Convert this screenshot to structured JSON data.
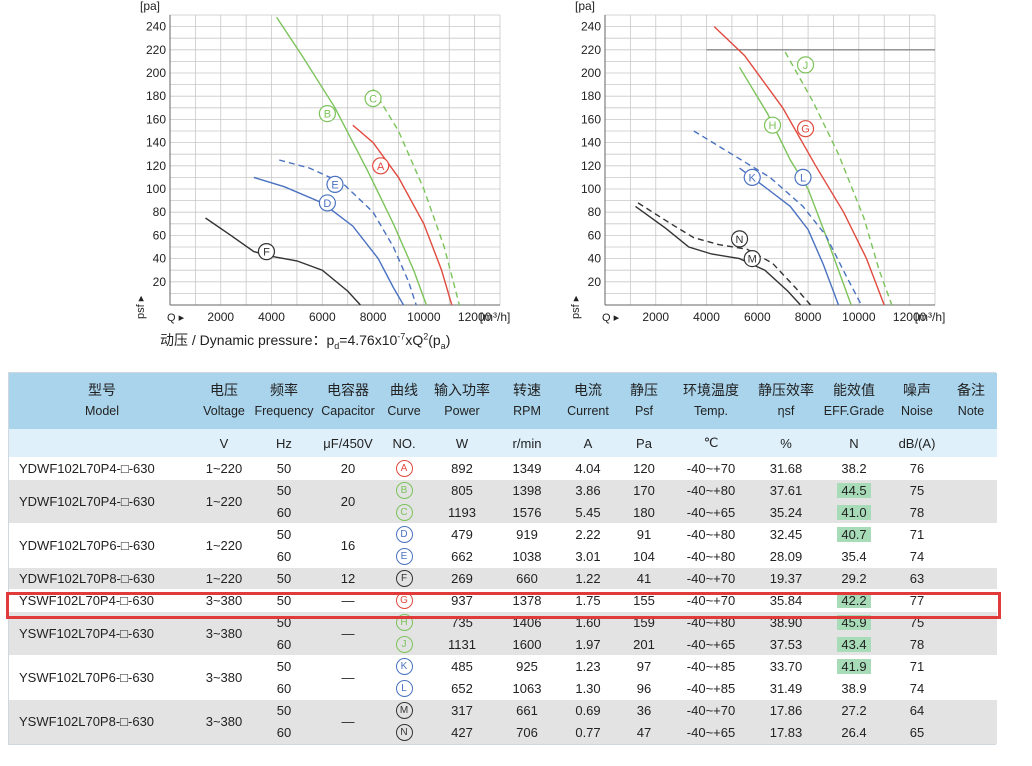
{
  "charts": {
    "y_unit": "[pa]",
    "x_unit": "[m³/h]",
    "y_axis_symbol": "p",
    "y_axis_sub": "sf",
    "x_axis_symbol": "Q",
    "y_ticks": [
      "20",
      "40",
      "60",
      "80",
      "100",
      "120",
      "140",
      "160",
      "180",
      "200",
      "220",
      "240"
    ],
    "x_ticks": [
      "2000",
      "4000",
      "6000",
      "8000",
      "10000",
      "12000"
    ]
  },
  "chart_data": [
    {
      "type": "line",
      "xlim": [
        0,
        13000
      ],
      "ylim": [
        0,
        250
      ],
      "series": [
        {
          "name": "A",
          "color": "#e04a3f",
          "dash": false,
          "x": [
            7200,
            8000,
            9000,
            10000,
            10700,
            11100
          ],
          "y": [
            155,
            140,
            110,
            70,
            30,
            0
          ]
        },
        {
          "name": "B",
          "color": "#7cc35a",
          "dash": false,
          "x": [
            4200,
            5200,
            6500,
            7800,
            8800,
            9600,
            10100
          ],
          "y": [
            248,
            215,
            170,
            115,
            70,
            30,
            0
          ]
        },
        {
          "name": "C",
          "color": "#7cc35a",
          "dash": true,
          "x": [
            8000,
            9000,
            10000,
            10800,
            11400
          ],
          "y": [
            186,
            150,
            100,
            50,
            0
          ]
        },
        {
          "name": "D",
          "color": "#4a72c0",
          "dash": false,
          "x": [
            3300,
            4500,
            6000,
            7200,
            8200,
            8800,
            9200
          ],
          "y": [
            110,
            102,
            88,
            68,
            40,
            15,
            0
          ]
        },
        {
          "name": "E",
          "color": "#4a72c0",
          "dash": true,
          "x": [
            4300,
            5500,
            6800,
            8000,
            8800,
            9400,
            9700
          ],
          "y": [
            125,
            118,
            105,
            80,
            50,
            20,
            0
          ]
        },
        {
          "name": "F",
          "color": "#333333",
          "dash": false,
          "x": [
            1400,
            2400,
            3300,
            4000,
            5000,
            6000,
            7000,
            7500
          ],
          "y": [
            75,
            60,
            46,
            42,
            38,
            30,
            12,
            0
          ]
        }
      ],
      "labels": [
        {
          "text": "A",
          "x": 8300,
          "y": 120
        },
        {
          "text": "B",
          "x": 6200,
          "y": 165
        },
        {
          "text": "C",
          "x": 8000,
          "y": 178
        },
        {
          "text": "D",
          "x": 6200,
          "y": 88
        },
        {
          "text": "E",
          "x": 6500,
          "y": 104
        },
        {
          "text": "F",
          "x": 3800,
          "y": 46
        }
      ]
    },
    {
      "type": "line",
      "xlim": [
        0,
        13000
      ],
      "ylim": [
        0,
        250
      ],
      "reference_line_y": 220,
      "series": [
        {
          "name": "G",
          "color": "#e04a3f",
          "dash": false,
          "x": [
            4300,
            5500,
            7000,
            8300,
            9400,
            10300,
            11000
          ],
          "y": [
            240,
            215,
            170,
            120,
            80,
            40,
            0
          ]
        },
        {
          "name": "H",
          "color": "#7cc35a",
          "dash": false,
          "x": [
            5300,
            6400,
            7300,
            8000,
            8700,
            9200,
            9700
          ],
          "y": [
            205,
            165,
            125,
            100,
            60,
            30,
            0
          ]
        },
        {
          "name": "J",
          "color": "#7cc35a",
          "dash": true,
          "x": [
            7100,
            8200,
            9200,
            10200,
            10800,
            11300
          ],
          "y": [
            218,
            175,
            130,
            75,
            30,
            0
          ]
        },
        {
          "name": "K",
          "color": "#4a72c0",
          "dash": false,
          "x": [
            5300,
            6400,
            7300,
            8000,
            8600,
            9200
          ],
          "y": [
            118,
            100,
            85,
            65,
            35,
            0
          ]
        },
        {
          "name": "L",
          "color": "#4a72c0",
          "dash": true,
          "x": [
            3500,
            5000,
            6500,
            7800,
            8700,
            9500,
            10100
          ],
          "y": [
            150,
            130,
            110,
            85,
            60,
            25,
            0
          ]
        },
        {
          "name": "M",
          "color": "#333333",
          "dash": false,
          "x": [
            1200,
            2400,
            3300,
            4200,
            5300,
            6300,
            7200,
            7700
          ],
          "y": [
            85,
            66,
            50,
            44,
            40,
            30,
            12,
            0
          ]
        },
        {
          "name": "N",
          "color": "#333333",
          "dash": true,
          "x": [
            1300,
            2600,
            3500,
            4500,
            5600,
            6600,
            7500,
            8100
          ],
          "y": [
            88,
            70,
            58,
            52,
            48,
            36,
            15,
            0
          ]
        }
      ],
      "labels": [
        {
          "text": "G",
          "x": 7900,
          "y": 152
        },
        {
          "text": "H",
          "x": 6600,
          "y": 155
        },
        {
          "text": "J",
          "x": 7900,
          "y": 207
        },
        {
          "text": "K",
          "x": 5800,
          "y": 110
        },
        {
          "text": "L",
          "x": 7800,
          "y": 110
        },
        {
          "text": "M",
          "x": 5800,
          "y": 40
        },
        {
          "text": "N",
          "x": 5300,
          "y": 57
        }
      ]
    }
  ],
  "formula": {
    "prefix": "动压 / Dynamic pressure：p",
    "sub1": "d",
    "middle": "=4.76x10",
    "sup1": "-7",
    "after": "xQ",
    "sup2": "2",
    "paren_open": "(p",
    "sub2": "a",
    "paren_close": ")"
  },
  "table": {
    "headers_cn": [
      "型号",
      "电压",
      "频率",
      "电容器",
      "曲线",
      "输入功率",
      "转速",
      "电流",
      "静压",
      "环境温度",
      "静压效率",
      "能效值",
      "噪声",
      "备注"
    ],
    "headers_en": [
      "Model",
      "Voltage",
      "Frequency",
      "Capacitor",
      "Curve",
      "Power",
      "RPM",
      "Current",
      "Psf",
      "Temp.",
      "ηsf",
      "EFF.Grade",
      "Noise",
      "Note"
    ],
    "units": [
      "",
      "V",
      "Hz",
      "μF/450V",
      "NO.",
      "W",
      "r/min",
      "A",
      "Pa",
      "℃",
      "%",
      "N",
      "dB/(A)",
      ""
    ],
    "groups": [
      {
        "model": "YDWF102L70P4-□-630",
        "voltage": "1~220",
        "capacitor": "20",
        "shade": "w",
        "rows": [
          {
            "hz": "50",
            "curve": "A",
            "color": "#e04a3f",
            "power": "892",
            "rpm": "1349",
            "current": "4.04",
            "psf": "120",
            "temp": "-40~+70",
            "eff": "31.68",
            "grade": "38.2",
            "hl": false,
            "noise": "76"
          }
        ]
      },
      {
        "model": "YDWF102L70P4-□-630",
        "voltage": "1~220",
        "capacitor": "20",
        "shade": "g",
        "rows": [
          {
            "hz": "50",
            "curve": "B",
            "color": "#7cc35a",
            "power": "805",
            "rpm": "1398",
            "current": "3.86",
            "psf": "170",
            "temp": "-40~+80",
            "eff": "37.61",
            "grade": "44.5",
            "hl": true,
            "noise": "75"
          },
          {
            "hz": "60",
            "curve": "C",
            "color": "#7cc35a",
            "power": "1193",
            "rpm": "1576",
            "current": "5.45",
            "psf": "180",
            "temp": "-40~+65",
            "eff": "35.24",
            "grade": "41.0",
            "hl": true,
            "noise": "78"
          }
        ]
      },
      {
        "model": "YDWF102L70P6-□-630",
        "voltage": "1~220",
        "capacitor": "16",
        "shade": "w",
        "rows": [
          {
            "hz": "50",
            "curve": "D",
            "color": "#4a72c0",
            "power": "479",
            "rpm": "919",
            "current": "2.22",
            "psf": "91",
            "temp": "-40~+80",
            "eff": "32.45",
            "grade": "40.7",
            "hl": true,
            "noise": "71"
          },
          {
            "hz": "60",
            "curve": "E",
            "color": "#4a72c0",
            "power": "662",
            "rpm": "1038",
            "current": "3.01",
            "psf": "104",
            "temp": "-40~+80",
            "eff": "28.09",
            "grade": "35.4",
            "hl": false,
            "noise": "74"
          }
        ]
      },
      {
        "model": "YDWF102L70P8-□-630",
        "voltage": "1~220",
        "capacitor": "12",
        "shade": "g",
        "rows": [
          {
            "hz": "50",
            "curve": "F",
            "color": "#333333",
            "power": "269",
            "rpm": "660",
            "current": "1.22",
            "psf": "41",
            "temp": "-40~+70",
            "eff": "19.37",
            "grade": "29.2",
            "hl": false,
            "noise": "63"
          }
        ]
      },
      {
        "model": "YSWF102L70P4-□-630",
        "voltage": "3~380",
        "capacitor": "—",
        "shade": "w",
        "rows": [
          {
            "hz": "50",
            "curve": "G",
            "color": "#e04a3f",
            "power": "937",
            "rpm": "1378",
            "current": "1.75",
            "psf": "155",
            "temp": "-40~+70",
            "eff": "35.84",
            "grade": "42.2",
            "hl": true,
            "noise": "77"
          }
        ]
      },
      {
        "model": "YSWF102L70P4-□-630",
        "voltage": "3~380",
        "capacitor": "—",
        "shade": "g",
        "rows": [
          {
            "hz": "50",
            "curve": "H",
            "color": "#7cc35a",
            "power": "735",
            "rpm": "1406",
            "current": "1.60",
            "psf": "159",
            "temp": "-40~+80",
            "eff": "38.90",
            "grade": "45.9",
            "hl": true,
            "noise": "75"
          },
          {
            "hz": "60",
            "curve": "J",
            "color": "#7cc35a",
            "power": "1131",
            "rpm": "1600",
            "current": "1.97",
            "psf": "201",
            "temp": "-40~+65",
            "eff": "37.53",
            "grade": "43.4",
            "hl": true,
            "noise": "78"
          }
        ]
      },
      {
        "model": "YSWF102L70P6-□-630",
        "voltage": "3~380",
        "capacitor": "—",
        "shade": "w",
        "rows": [
          {
            "hz": "50",
            "curve": "K",
            "color": "#4a72c0",
            "power": "485",
            "rpm": "925",
            "current": "1.23",
            "psf": "97",
            "temp": "-40~+85",
            "eff": "33.70",
            "grade": "41.9",
            "hl": true,
            "noise": "71"
          },
          {
            "hz": "60",
            "curve": "L",
            "color": "#4a72c0",
            "power": "652",
            "rpm": "1063",
            "current": "1.30",
            "psf": "96",
            "temp": "-40~+85",
            "eff": "31.49",
            "grade": "38.9",
            "hl": false,
            "noise": "74"
          }
        ]
      },
      {
        "model": "YSWF102L70P8-□-630",
        "voltage": "3~380",
        "capacitor": "—",
        "shade": "g",
        "rows": [
          {
            "hz": "50",
            "curve": "M",
            "color": "#333333",
            "power": "317",
            "rpm": "661",
            "current": "0.69",
            "psf": "36",
            "temp": "-40~+70",
            "eff": "17.86",
            "grade": "27.2",
            "hl": false,
            "noise": "64"
          },
          {
            "hz": "60",
            "curve": "N",
            "color": "#333333",
            "power": "427",
            "rpm": "706",
            "current": "0.77",
            "psf": "47",
            "temp": "-40~+65",
            "eff": "17.83",
            "grade": "26.4",
            "hl": false,
            "noise": "65"
          }
        ]
      }
    ]
  }
}
